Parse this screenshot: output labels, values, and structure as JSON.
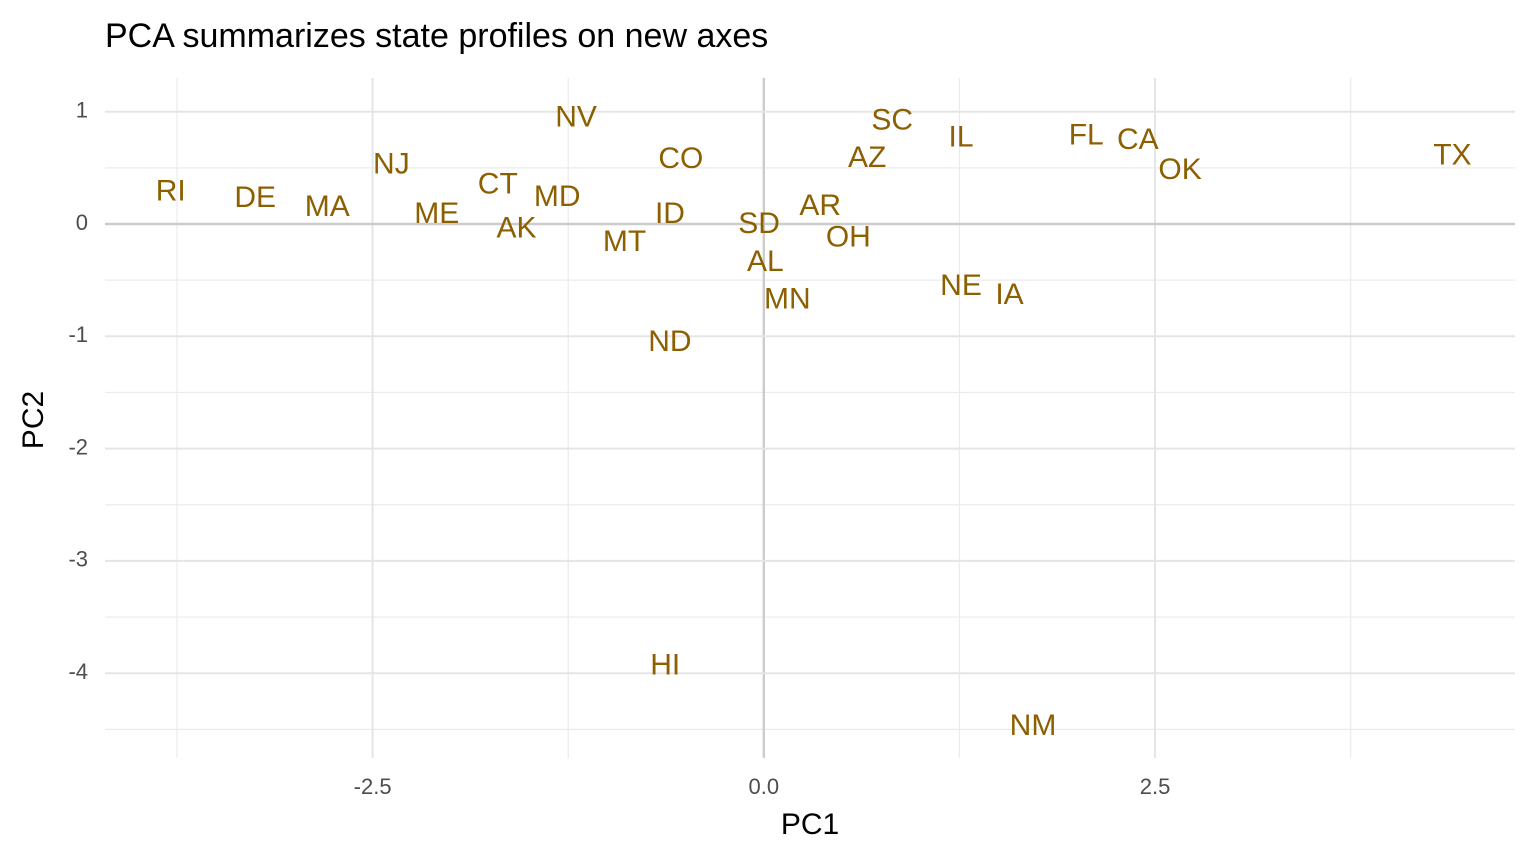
{
  "chart_data": {
    "type": "text-scatter",
    "title": "PCA summarizes state profiles on new axes",
    "x_label": "PC1",
    "y_label": "PC2",
    "labels": [
      "RI",
      "DE",
      "MA",
      "NJ",
      "ME",
      "CT",
      "AK",
      "MD",
      "NV",
      "MT",
      "CO",
      "ID",
      "ND",
      "HI",
      "SD",
      "AL",
      "MN",
      "AR",
      "OH",
      "AZ",
      "SC",
      "IL",
      "NE",
      "IA",
      "NM",
      "FL",
      "CA",
      "OK",
      "TX"
    ],
    "x": [
      -3.79,
      -3.25,
      -2.79,
      -2.38,
      -2.09,
      -1.7,
      -1.58,
      -1.32,
      -1.2,
      -0.89,
      -0.53,
      -0.6,
      -0.6,
      -0.63,
      -0.03,
      0.01,
      0.15,
      0.36,
      0.54,
      0.66,
      0.82,
      1.26,
      1.26,
      1.57,
      1.72,
      2.06,
      2.39,
      2.66,
      4.4
    ],
    "y": [
      0.28,
      0.22,
      0.14,
      0.52,
      0.08,
      0.34,
      -0.05,
      0.23,
      0.94,
      -0.17,
      0.57,
      0.08,
      -1.06,
      -3.94,
      -0.01,
      -0.35,
      -0.68,
      0.15,
      -0.13,
      0.58,
      0.91,
      0.76,
      -0.56,
      -0.64,
      -4.48,
      0.78,
      0.74,
      0.47,
      0.6
    ],
    "color": "#8c5f00",
    "xlim": [
      -4.21,
      4.8
    ],
    "ylim": [
      -4.755,
      1.3
    ],
    "xticks": [
      -2.5,
      {
        "value": 0,
        "label": "0.0"
      },
      2.5
    ],
    "yticks": [
      -4,
      -3,
      -2,
      -1,
      0,
      1
    ],
    "xminorticks": [
      -3.75,
      -1.25,
      1.25,
      3.75
    ],
    "yminorticks": [
      -4.5,
      -3.5,
      -2.5,
      -1.5,
      -0.5,
      0.5
    ],
    "grid": true,
    "zero_lines": true
  }
}
